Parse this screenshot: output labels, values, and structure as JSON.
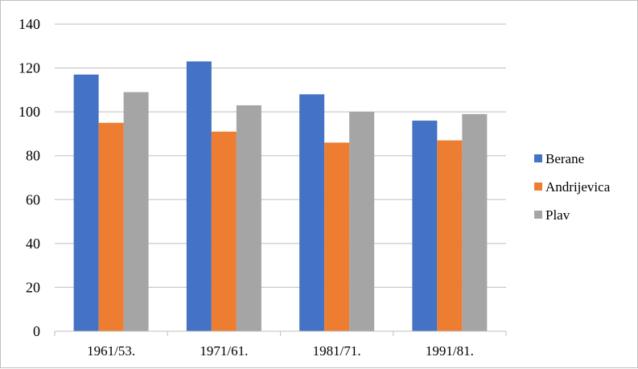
{
  "chart_data": {
    "type": "bar",
    "categories": [
      "1961/53.",
      "1971/61.",
      "1981/71.",
      "1991/81."
    ],
    "series": [
      {
        "name": "Berane",
        "values": [
          117,
          123,
          108,
          96
        ],
        "color": "#4472c4"
      },
      {
        "name": "Andrijevica",
        "values": [
          95,
          91,
          86,
          87
        ],
        "color": "#ed7d31"
      },
      {
        "name": "Plav",
        "values": [
          109,
          103,
          100,
          99
        ],
        "color": "#a5a5a5"
      }
    ],
    "ylim": [
      0,
      140
    ],
    "yticks": [
      0,
      20,
      40,
      60,
      80,
      100,
      120,
      140
    ],
    "grid": true,
    "legend_position": "right"
  }
}
